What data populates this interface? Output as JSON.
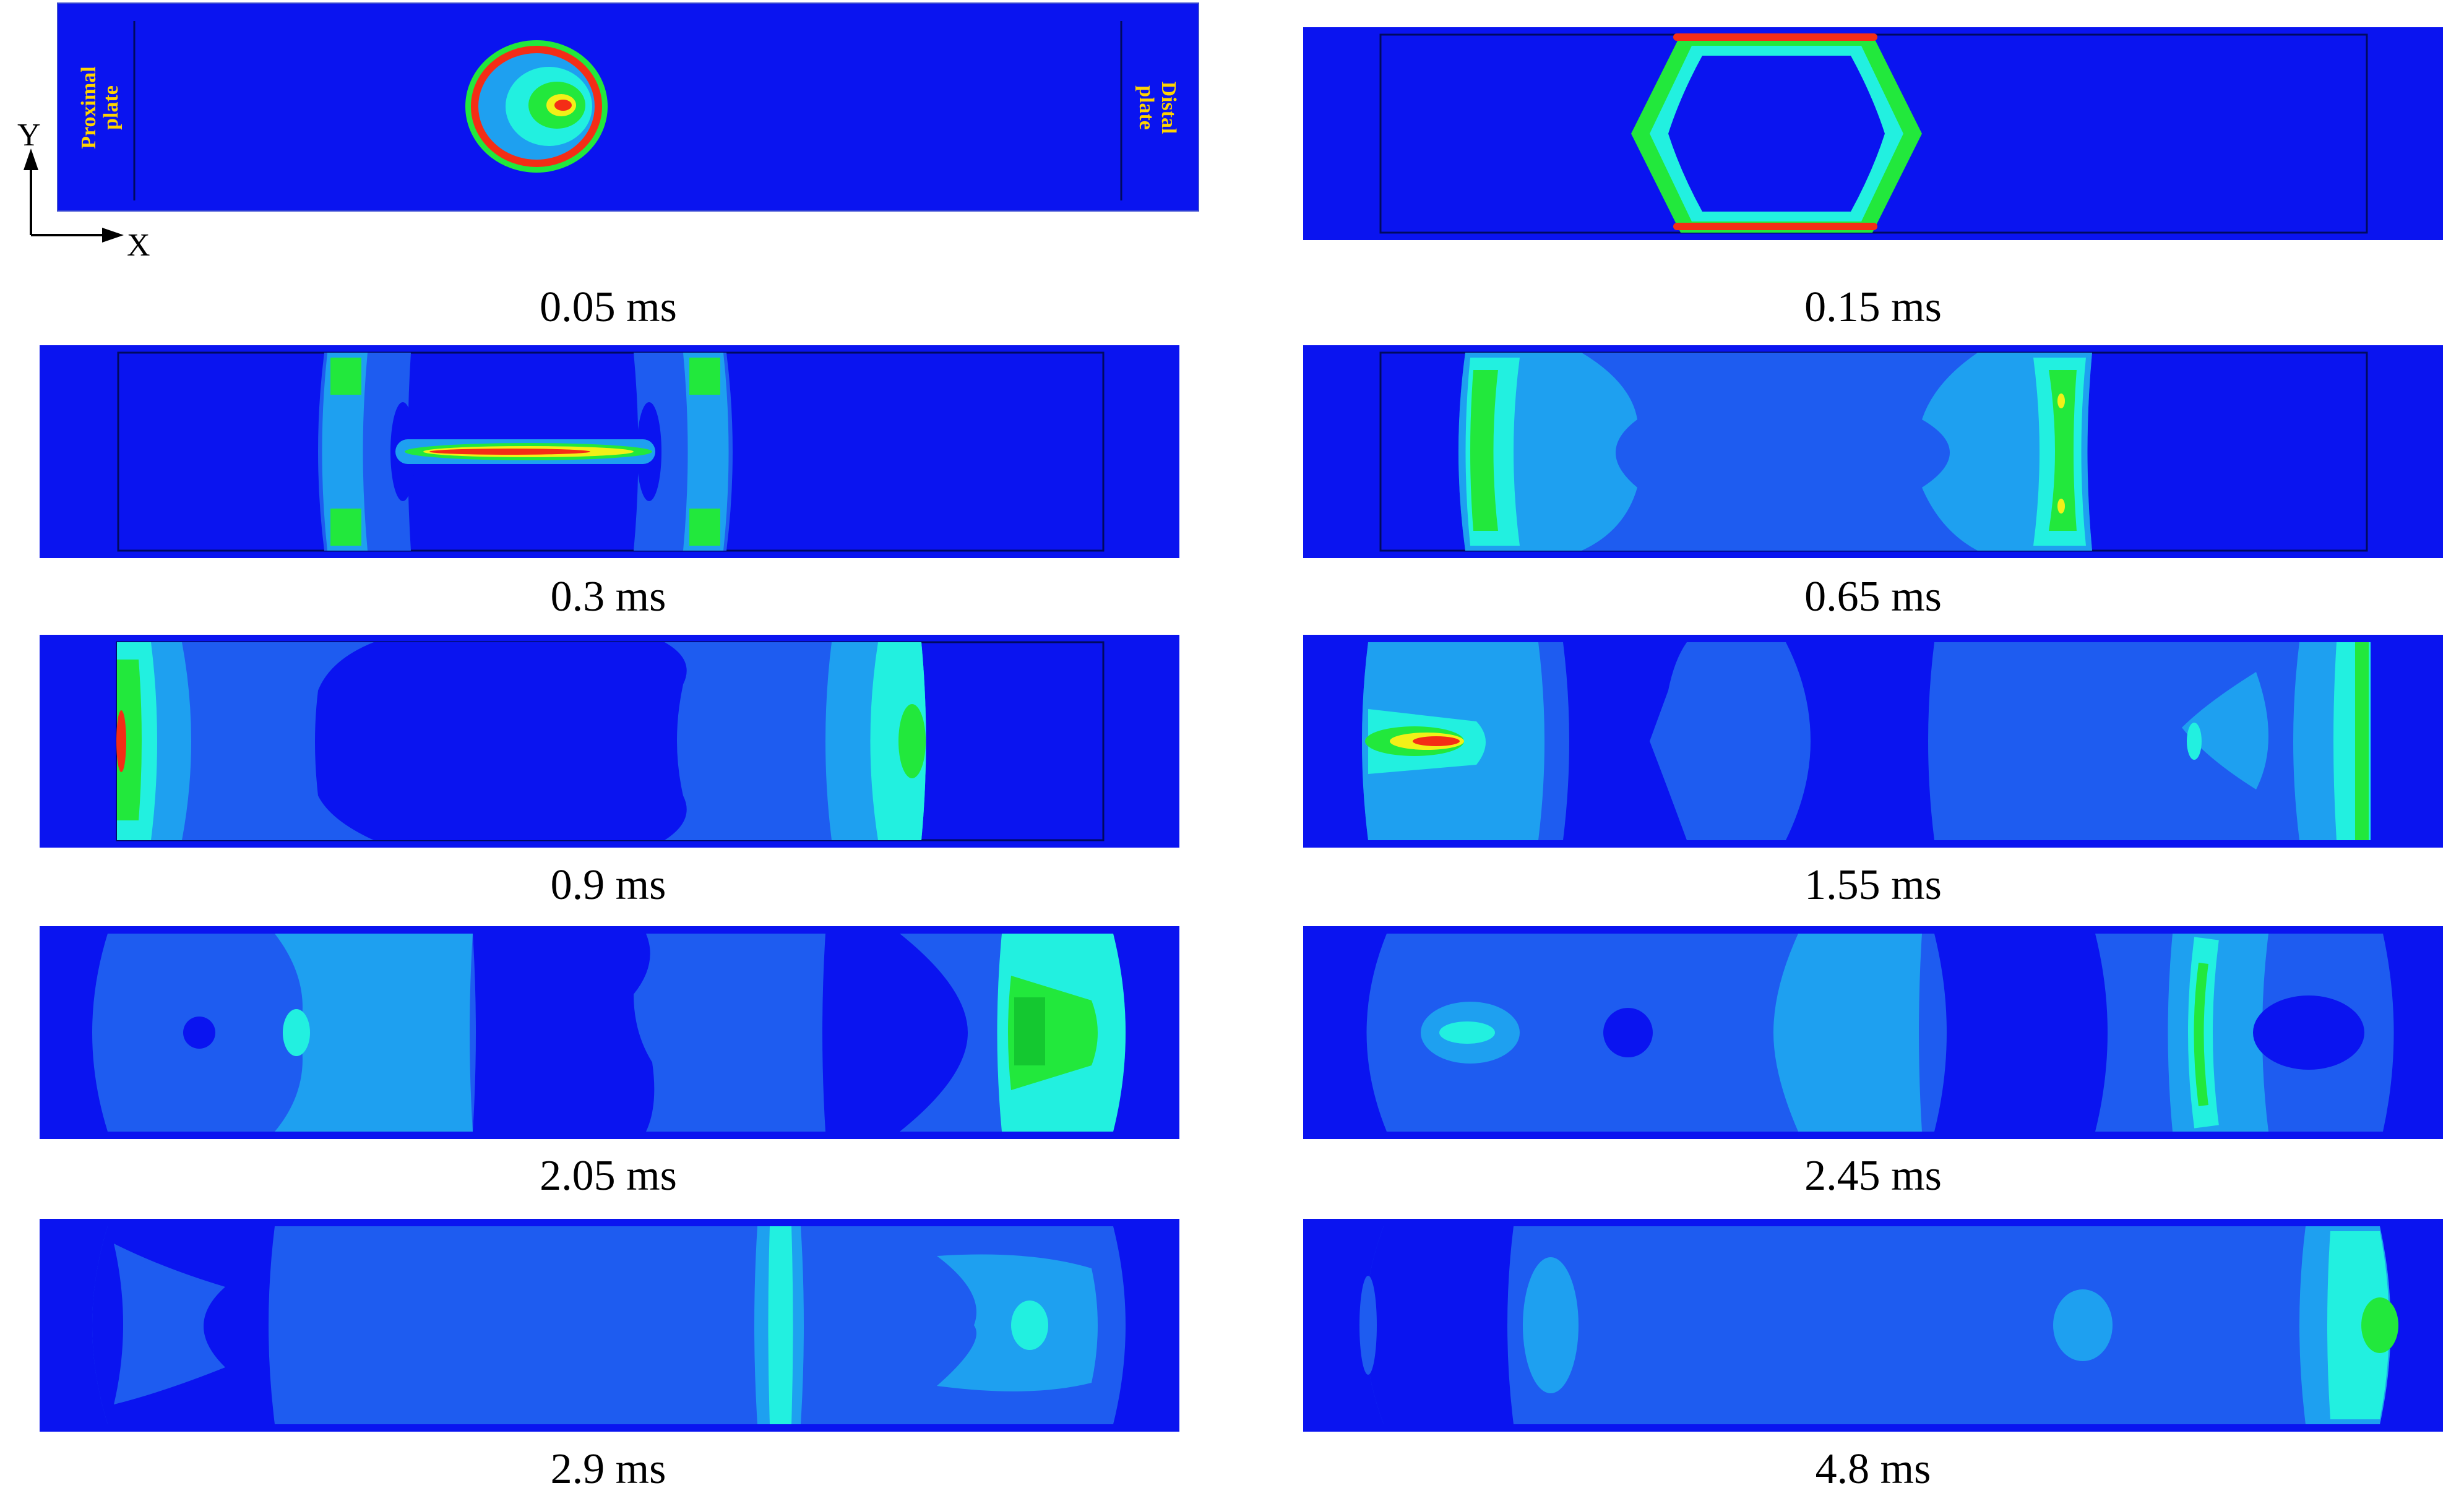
{
  "axes": {
    "y_label": "Y",
    "x_label": "X"
  },
  "plates": {
    "proximal_line1": "Proximal",
    "proximal_line2": "plate",
    "distal_line1": "Distal",
    "distal_line2": "plate"
  },
  "colors": {
    "background": "#0a14f0",
    "level1": "#1e5cf0",
    "level2": "#1ea0f0",
    "level3": "#22f0e0",
    "level4": "#22e83c",
    "level5": "#f2f018",
    "level6": "#f42d16"
  },
  "panels": [
    {
      "time": "0.05 ms"
    },
    {
      "time": "0.15 ms"
    },
    {
      "time": "0.3 ms"
    },
    {
      "time": "0.65 ms"
    },
    {
      "time": "0.9 ms"
    },
    {
      "time": "1.55 ms"
    },
    {
      "time": "2.05 ms"
    },
    {
      "time": "2.45 ms"
    },
    {
      "time": "2.9 ms"
    },
    {
      "time": "4.8 ms"
    }
  ]
}
